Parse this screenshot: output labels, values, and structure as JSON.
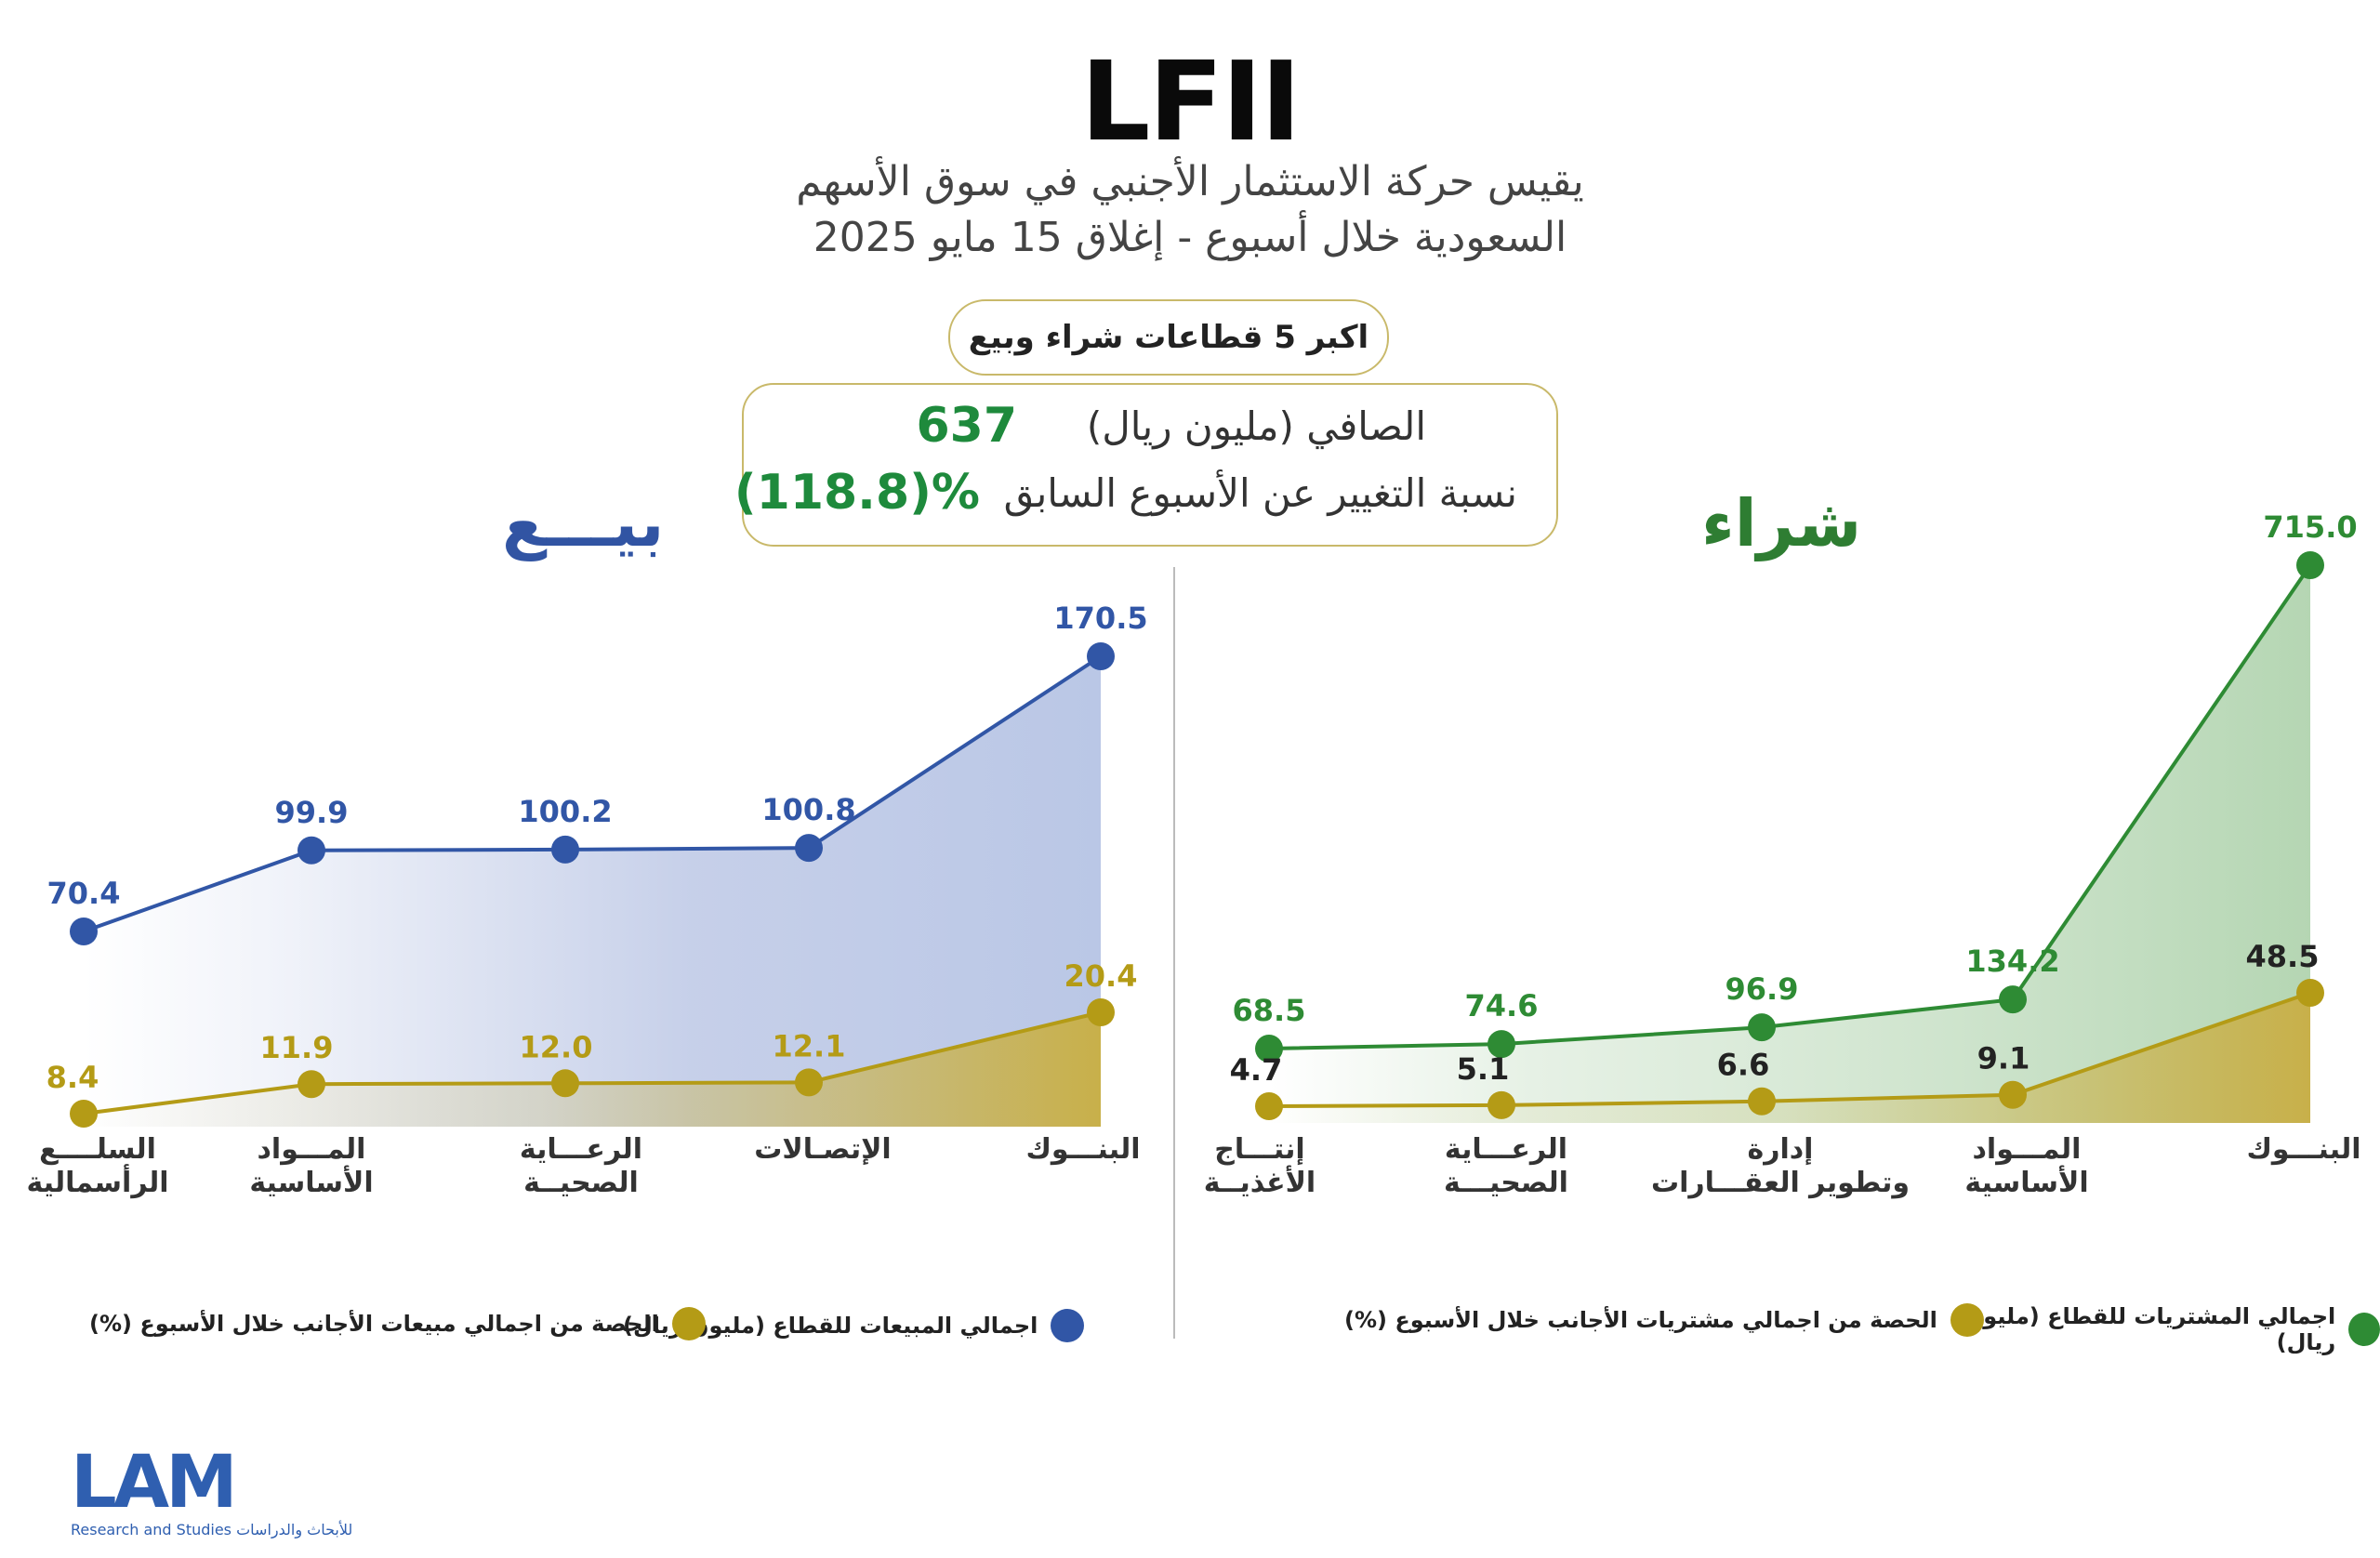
{
  "header": {
    "title": "LFII",
    "subtitle_line1": "يقيس حركة الاستثمار الأجنبي في سوق الأسهم",
    "subtitle_line2": "السعودية خلال أسبوع - إغلاق 15 مايو 2025",
    "pill": "اكبر 5 قطاعات شراء وبيع"
  },
  "summary": {
    "net_label": "الصافي (مليون ريال)",
    "net_value": "637",
    "change_label": "نسبة التغيير عن الأسبوع السابق",
    "change_value": "(118.8)%"
  },
  "colors": {
    "buy": "#2e8b34",
    "sell": "#3156a6",
    "share": "#b49b16"
  },
  "chart_data": [
    {
      "type": "area",
      "heading": "بيـــع",
      "categories": [
        "السلــــع الرأسمالية",
        "المـــواد الأساسية",
        "الرعـــاية الصحيــة",
        "الإتصـالات",
        "البنـــوك"
      ],
      "series": [
        {
          "name": "اجمالي المبيعات للقطاع (مليون ريال)",
          "values": [
            70.4,
            99.9,
            100.2,
            100.8,
            170.5
          ],
          "labels": [
            "70.4",
            "99.9",
            "100.2",
            "100.8",
            "170.5"
          ]
        },
        {
          "name": "الحصة من اجمالي مبيعات الأجانب خلال الأسبوع (%)",
          "values": [
            8.4,
            11.9,
            12.0,
            12.1,
            20.4
          ],
          "labels": [
            "8.4",
            "11.9",
            "12.0",
            "12.1",
            "20.4"
          ]
        }
      ]
    },
    {
      "type": "area",
      "heading": "شراء",
      "categories": [
        "إنتـــاج الأغذيــة",
        "الرعـــاية الصحيـــة",
        "إدارة وتطوير العقـــارات",
        "المـــواد الأساسية",
        "البنـــوك"
      ],
      "series": [
        {
          "name": "اجمالي المشتريات للقطاع (مليون ريال)",
          "values": [
            68.5,
            74.6,
            96.9,
            134.2,
            715.0
          ],
          "labels": [
            "68.5",
            "74.6",
            "96.9",
            "134.2",
            "715.0"
          ]
        },
        {
          "name": "الحصة من اجمالي مشتريات الأجانب خلال الأسبوع (%)",
          "values": [
            4.7,
            5.1,
            6.6,
            9.1,
            48.5
          ],
          "labels": [
            "4.7",
            "5.1",
            "6.6",
            "9.1",
            "48.5"
          ]
        }
      ]
    }
  ],
  "logo": {
    "text": "LAM",
    "sub": "للأبحاث والدراسات Research and Studies"
  }
}
